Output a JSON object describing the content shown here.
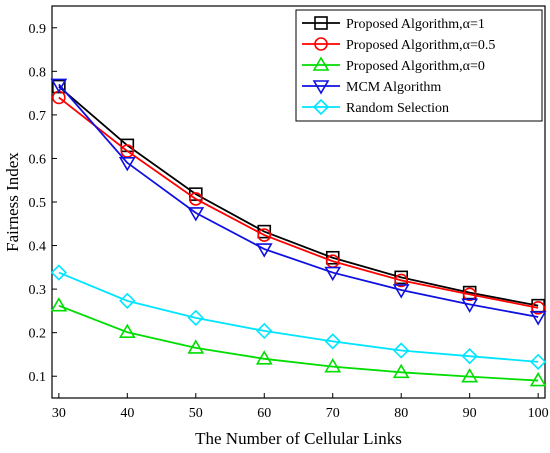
{
  "chart_data": {
    "type": "line",
    "title": "",
    "xlabel": "The Number of Cellular Links",
    "ylabel": "Fairness Index",
    "x": [
      30,
      40,
      50,
      60,
      70,
      80,
      90,
      100
    ],
    "xlim": [
      29,
      101
    ],
    "ylim": [
      0.05,
      0.95
    ],
    "xticks": [
      30,
      40,
      50,
      60,
      70,
      80,
      90,
      100
    ],
    "yticks": [
      0.1,
      0.2,
      0.3,
      0.4,
      0.5,
      0.6,
      0.7,
      0.8,
      0.9
    ],
    "grid": false,
    "legend_position": "top-right",
    "series": [
      {
        "name": "Proposed Algorithm,α=1",
        "color": "#000000",
        "marker": "square",
        "values": [
          0.765,
          0.63,
          0.518,
          0.432,
          0.372,
          0.327,
          0.292,
          0.262
        ]
      },
      {
        "name": "Proposed Algorithm,α=0.5",
        "color": "#ff0000",
        "marker": "circle",
        "values": [
          0.74,
          0.617,
          0.507,
          0.424,
          0.364,
          0.32,
          0.288,
          0.257
        ]
      },
      {
        "name": "Proposed Algorithm,α=0",
        "color": "#00dd00",
        "marker": "triangle-up",
        "values": [
          0.262,
          0.201,
          0.165,
          0.14,
          0.122,
          0.109,
          0.099,
          0.09
        ]
      },
      {
        "name": "MCM Algorithm",
        "color": "#1010e0",
        "marker": "triangle-down",
        "values": [
          0.77,
          0.59,
          0.475,
          0.392,
          0.338,
          0.298,
          0.265,
          0.236
        ]
      },
      {
        "name": "Random Selection",
        "color": "#00e5ff",
        "marker": "diamond",
        "values": [
          0.338,
          0.273,
          0.234,
          0.204,
          0.18,
          0.159,
          0.146,
          0.133
        ]
      }
    ]
  }
}
